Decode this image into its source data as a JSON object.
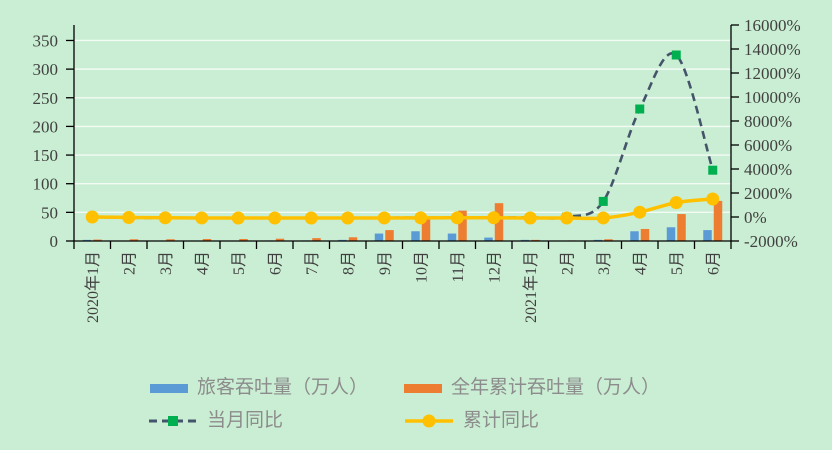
{
  "chart_data": {
    "type": "combo",
    "background_color": "#CAEED3",
    "grid": true,
    "legend_position": "bottom",
    "categories": [
      "2020年1月",
      "2月",
      "3月",
      "4月",
      "5月",
      "6月",
      "7月",
      "8月",
      "9月",
      "10月",
      "11月",
      "12月",
      "2021年1月",
      "2月",
      "3月",
      "4月",
      "5月",
      "6月"
    ],
    "series": [
      {
        "key": "passenger-throughput-bar",
        "name": "旅客吞吐量（万人）",
        "type": "bar",
        "axis": "left",
        "color": "#5B9BD5",
        "values": [
          2,
          0.5,
          0.5,
          0.5,
          0.5,
          1,
          1,
          2,
          13,
          17,
          13,
          6,
          2,
          0.5,
          2,
          17,
          24,
          19
        ]
      },
      {
        "key": "annual-cumulative-throughput-bar",
        "name": "全年累计吞吐量（万人）",
        "type": "bar",
        "axis": "left",
        "color": "#ED7D31",
        "values": [
          2.5,
          3,
          3,
          3.5,
          3.5,
          4,
          5,
          6.5,
          19,
          41,
          53,
          66,
          2,
          1,
          3,
          21,
          47,
          70
        ]
      },
      {
        "key": "monthly-yoy-line",
        "name": "当月同比",
        "type": "line",
        "line_style": "dashed",
        "axis": "right",
        "color": "#44546A",
        "marker": "square",
        "marker_color": "#00B050",
        "values": [
          0,
          -60,
          -85,
          -90,
          -90,
          -85,
          -80,
          -75,
          -65,
          -55,
          -50,
          -45,
          -40,
          0,
          1300,
          9000,
          13500,
          3900
        ]
      },
      {
        "key": "cumulative-yoy-line",
        "name": "累计同比",
        "type": "line",
        "line_style": "solid",
        "axis": "right",
        "color": "#FFC000",
        "marker": "circle",
        "marker_color": "#FFC000",
        "values": [
          0,
          -40,
          -70,
          -80,
          -85,
          -85,
          -85,
          -85,
          -80,
          -75,
          -70,
          -65,
          -85,
          -85,
          -80,
          400,
          1200,
          1500
        ]
      }
    ],
    "left_axis": {
      "tick_labels": [
        "0",
        "50",
        "100",
        "150",
        "200",
        "250",
        "300",
        "350"
      ],
      "tick_values": [
        0,
        50,
        100,
        150,
        200,
        250,
        300,
        350
      ],
      "min": 0,
      "max": 377
    },
    "right_axis": {
      "tick_labels": [
        "-2000%",
        "0%",
        "2000%",
        "4000%",
        "6000%",
        "8000%",
        "10000%",
        "12000%",
        "14000%",
        "16000%"
      ],
      "tick_values": [
        -2000,
        0,
        2000,
        4000,
        6000,
        8000,
        10000,
        12000,
        14000,
        16000
      ],
      "min": -2000,
      "max": 16000
    },
    "axis_color": "#000000",
    "tick_label_color": "#404040",
    "gridline_color": "rgba(255,255,255,0.75)",
    "legend_text_color": "#8C8C8C"
  }
}
